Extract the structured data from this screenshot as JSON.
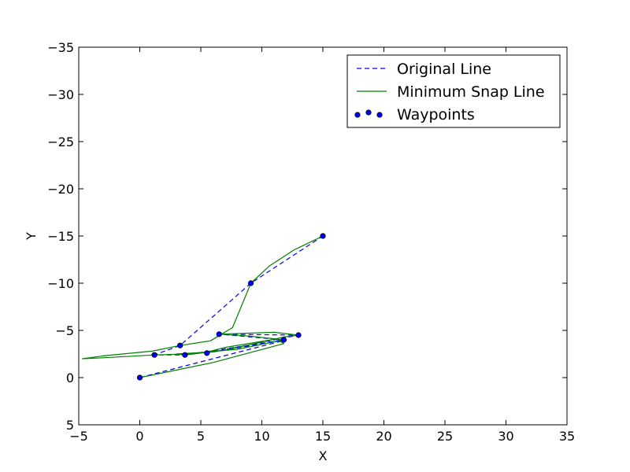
{
  "chart_data": {
    "type": "line",
    "title": "",
    "xlabel": "X",
    "ylabel": "Y",
    "xlim": [
      -5,
      35
    ],
    "ylim": [
      5,
      -35
    ],
    "y_inverted": true,
    "grid": false,
    "legend_position": "top-right",
    "x_ticks": [
      "−5",
      "0",
      "5",
      "10",
      "15",
      "20",
      "25",
      "30",
      "35"
    ],
    "y_ticks": [
      "5",
      "0",
      "−5",
      "−10",
      "−15",
      "−20",
      "−25",
      "−30",
      "−35"
    ],
    "series": [
      {
        "name": "Original Line",
        "style": "dashed",
        "color": "#0000ff",
        "points": [
          [
            0,
            0
          ],
          [
            12,
            -4
          ],
          [
            5.5,
            -2.6
          ],
          [
            13,
            -4.5
          ],
          [
            6.5,
            -4.6
          ],
          [
            11.8,
            -4
          ],
          [
            3.7,
            -2.4
          ],
          [
            1.2,
            -2.4
          ],
          [
            3.3,
            -3.4
          ],
          [
            9.1,
            -10
          ],
          [
            15,
            -15
          ]
        ]
      },
      {
        "name": "Minimum Snap Line",
        "style": "solid",
        "color": "#008000",
        "points": [
          [
            0,
            0
          ],
          [
            6,
            -1.6
          ],
          [
            11.8,
            -3.6
          ],
          [
            11.2,
            -4.1
          ],
          [
            7,
            -3.2
          ],
          [
            5.5,
            -2.7
          ],
          [
            3,
            -2.5
          ],
          [
            3.7,
            -2.4
          ],
          [
            7,
            -2.9
          ],
          [
            11.8,
            -4.3
          ],
          [
            13,
            -4.5
          ],
          [
            11,
            -4.8
          ],
          [
            6.5,
            -4.6
          ],
          [
            9,
            -4.4
          ],
          [
            11.8,
            -4
          ],
          [
            8,
            -3
          ],
          [
            3.7,
            -2.5
          ],
          [
            1.2,
            -2.4
          ],
          [
            -3,
            -2.1
          ],
          [
            -4.7,
            -2
          ],
          [
            -3,
            -2.3
          ],
          [
            1,
            -2.8
          ],
          [
            3.3,
            -3.4
          ],
          [
            5.8,
            -3.9
          ],
          [
            7.6,
            -5.3
          ],
          [
            8.4,
            -7.8
          ],
          [
            9.1,
            -10
          ],
          [
            10.6,
            -11.8
          ],
          [
            12.6,
            -13.5
          ],
          [
            15,
            -15
          ]
        ]
      }
    ],
    "scatter": {
      "name": "Waypoints",
      "color": "#0000ff",
      "points": [
        [
          0,
          0
        ],
        [
          1.2,
          -2.4
        ],
        [
          3.3,
          -3.4
        ],
        [
          3.7,
          -2.4
        ],
        [
          5.5,
          -2.6
        ],
        [
          6.5,
          -4.6
        ],
        [
          9.1,
          -10
        ],
        [
          11.8,
          -4
        ],
        [
          13,
          -4.5
        ],
        [
          15,
          -15
        ]
      ]
    }
  }
}
